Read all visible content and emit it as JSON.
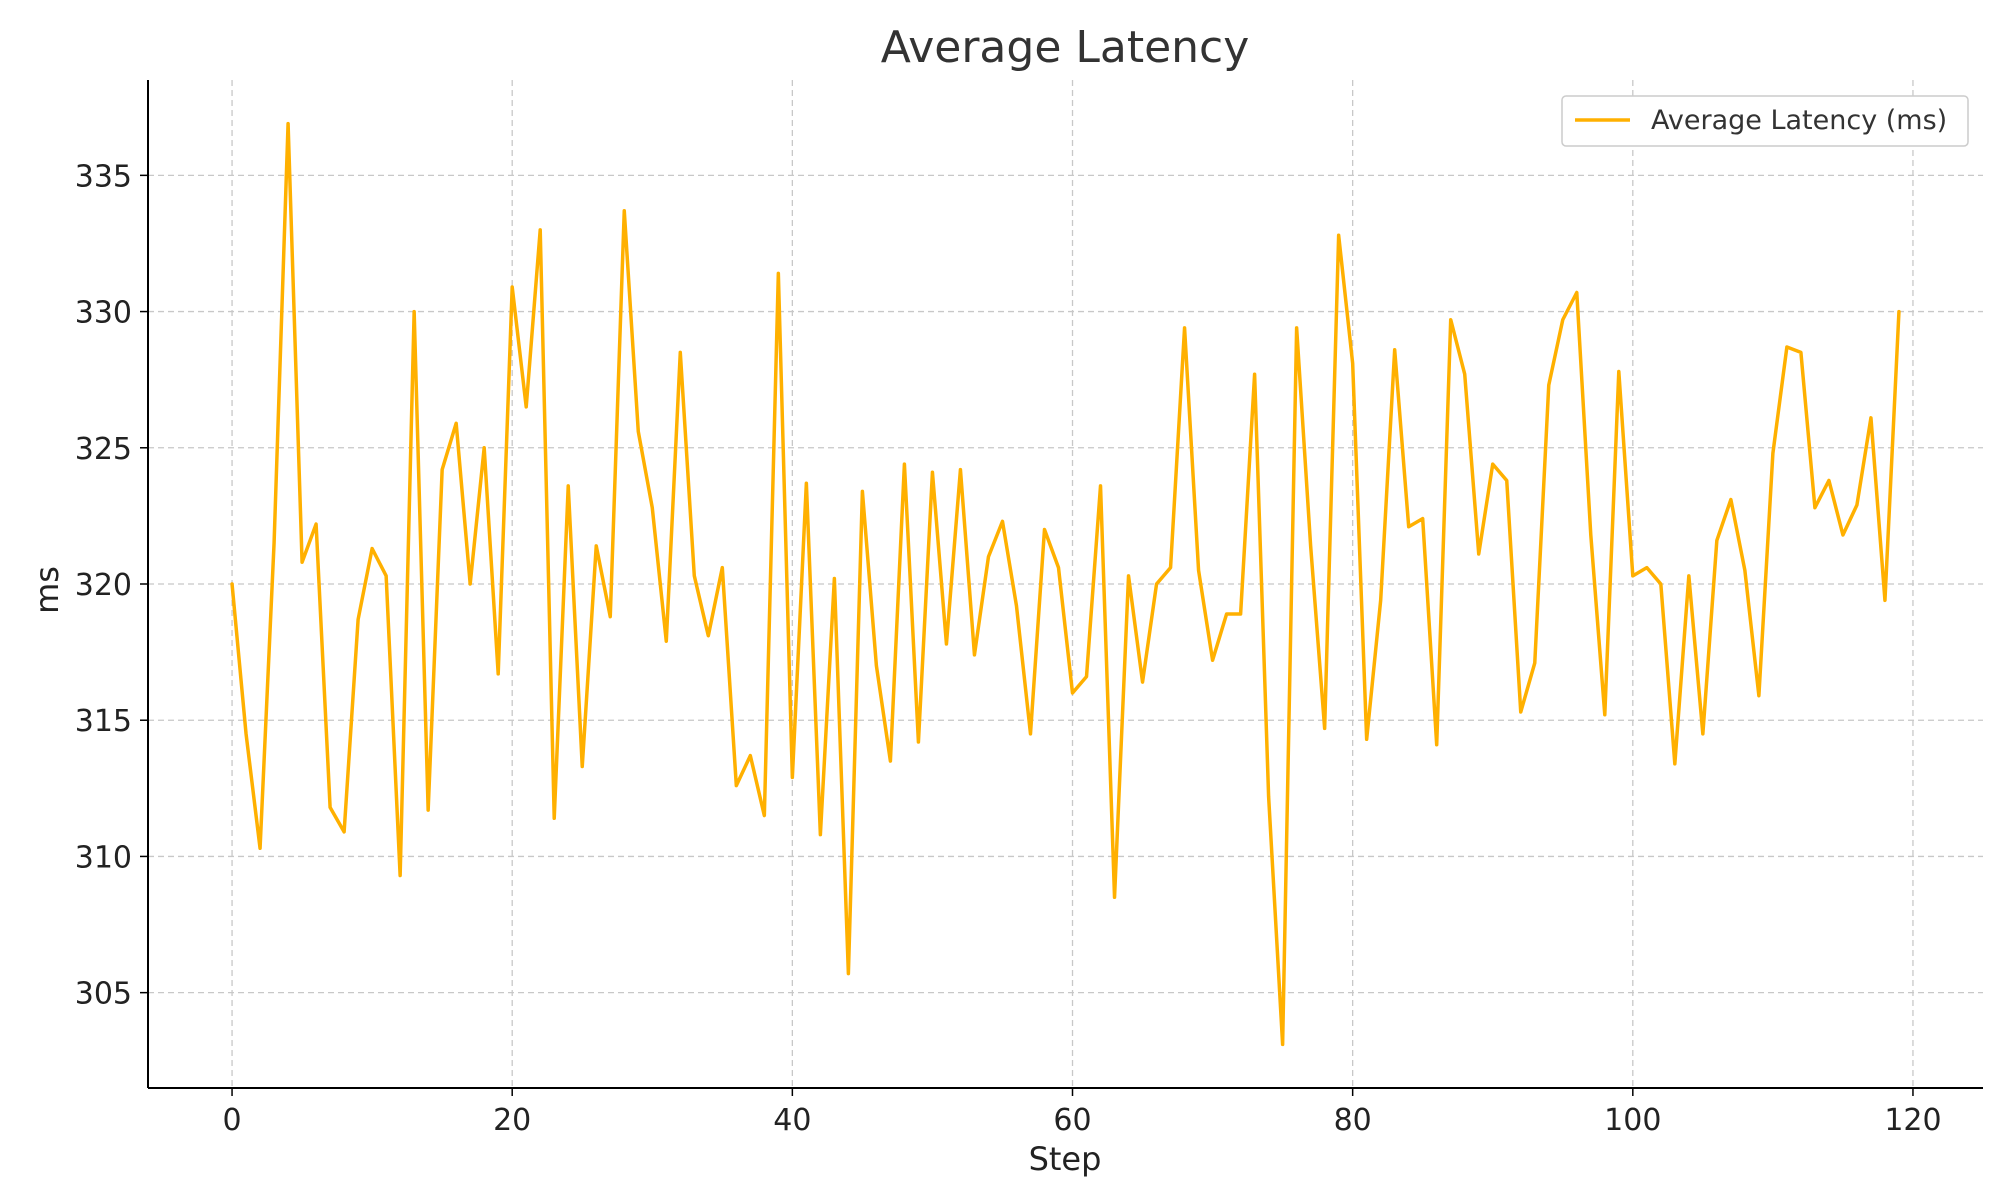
{
  "chart_data": {
    "type": "line",
    "title": "Average Latency",
    "xlabel": "Step",
    "ylabel": "ms",
    "xlim": [
      -6,
      125
    ],
    "ylim": [
      301.5,
      338.5
    ],
    "xticks": [
      0,
      20,
      40,
      60,
      80,
      100,
      120
    ],
    "yticks": [
      305,
      310,
      315,
      320,
      325,
      330,
      335
    ],
    "grid": true,
    "legend_position": "top-right",
    "series": [
      {
        "name": "Average Latency (ms)",
        "color": "#FFB000",
        "x": [
          0,
          1,
          2,
          3,
          4,
          5,
          6,
          7,
          8,
          9,
          10,
          11,
          12,
          13,
          14,
          15,
          16,
          17,
          18,
          19,
          20,
          21,
          22,
          23,
          24,
          25,
          26,
          27,
          28,
          29,
          30,
          31,
          32,
          33,
          34,
          35,
          36,
          37,
          38,
          39,
          40,
          41,
          42,
          43,
          44,
          45,
          46,
          47,
          48,
          49,
          50,
          51,
          52,
          53,
          54,
          55,
          56,
          57,
          58,
          59,
          60,
          61,
          62,
          63,
          64,
          65,
          66,
          67,
          68,
          69,
          70,
          71,
          72,
          73,
          74,
          75,
          76,
          77,
          78,
          79,
          80,
          81,
          82,
          83,
          84,
          85,
          86,
          87,
          88,
          89,
          90,
          91,
          92,
          93,
          94,
          95,
          96,
          97,
          98,
          99,
          100,
          101,
          102,
          103,
          104,
          105,
          106,
          107,
          108,
          109,
          110,
          111,
          112,
          113,
          114,
          115,
          116,
          117,
          118,
          119
        ],
        "y": [
          320.0,
          314.5,
          310.3,
          321.5,
          336.9,
          320.8,
          322.2,
          311.8,
          310.9,
          318.7,
          321.3,
          320.3,
          309.3,
          330.0,
          311.7,
          324.2,
          325.9,
          320.0,
          325.0,
          316.7,
          330.9,
          326.5,
          333.0,
          311.4,
          323.6,
          313.3,
          321.4,
          318.8,
          333.7,
          325.6,
          322.8,
          317.9,
          328.5,
          320.3,
          318.1,
          320.6,
          312.6,
          313.7,
          311.5,
          331.4,
          312.9,
          323.7,
          310.8,
          320.2,
          305.7,
          323.4,
          317.0,
          313.5,
          324.4,
          314.2,
          324.1,
          317.8,
          324.2,
          317.4,
          321.0,
          322.3,
          319.2,
          314.5,
          322.0,
          320.6,
          316.0,
          316.6,
          323.6,
          308.5,
          320.3,
          316.4,
          320.0,
          320.6,
          329.4,
          320.5,
          317.2,
          318.9,
          318.9,
          327.7,
          312.2,
          303.1,
          329.4,
          321.4,
          314.7,
          332.8,
          328.1,
          314.3,
          319.4,
          328.6,
          322.1,
          322.4,
          314.1,
          329.7,
          327.7,
          321.1,
          324.4,
          323.8,
          315.3,
          317.1,
          327.3,
          329.7,
          330.7,
          321.8,
          315.2,
          327.8,
          320.3,
          320.6,
          320.0,
          313.4,
          320.3,
          314.5,
          321.6,
          323.1,
          320.5,
          315.9,
          324.8,
          328.7,
          328.5,
          322.8,
          323.8,
          321.8,
          322.9,
          326.1,
          319.4,
          330.0
        ]
      }
    ]
  }
}
